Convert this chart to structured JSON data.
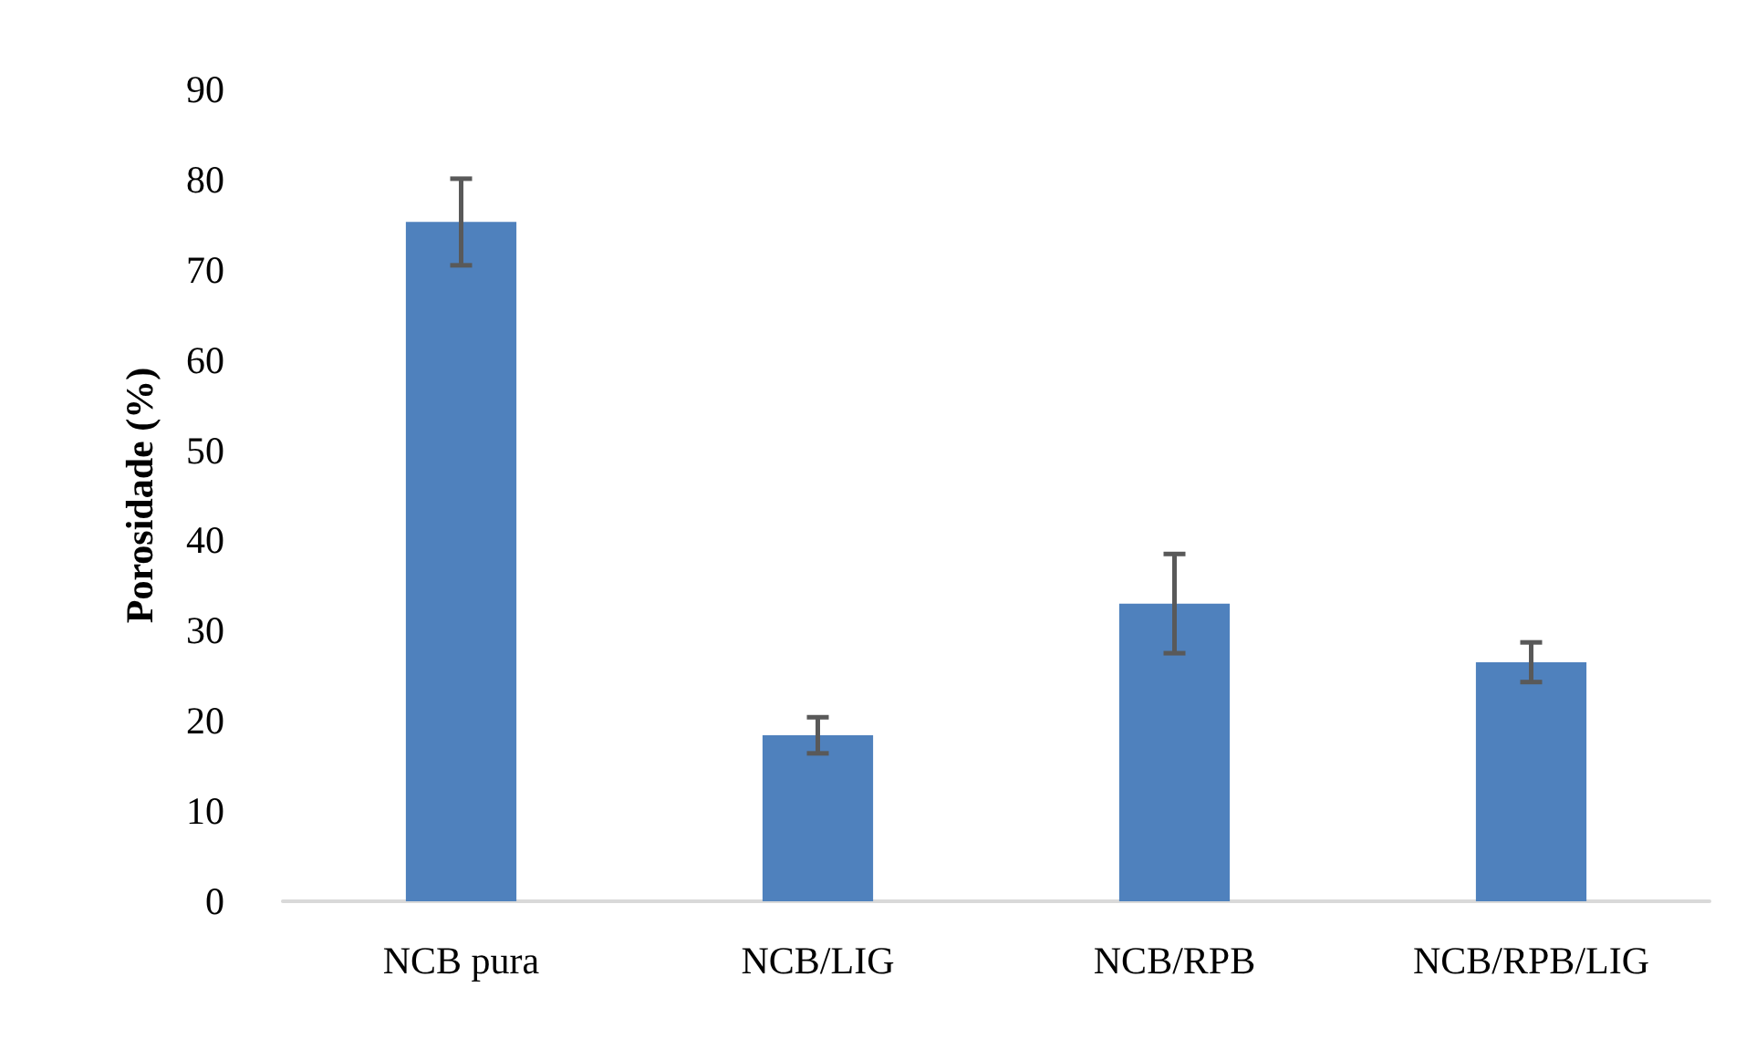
{
  "chart_data": {
    "type": "bar",
    "ylabel": "Porosidade (%)",
    "categories": [
      "NCB pura",
      "NCB/LIG",
      "NCB/RPB",
      "NCB/RPB/LIG"
    ],
    "values": [
      75.3,
      18.4,
      33,
      26.5
    ],
    "color": "#4f81bd",
    "errors": [
      4.8,
      2,
      5.5,
      2.2
    ],
    "ylim": [
      0,
      90
    ],
    "yticks": [
      0,
      10,
      20,
      30,
      40,
      50,
      60,
      70,
      80,
      90
    ]
  }
}
